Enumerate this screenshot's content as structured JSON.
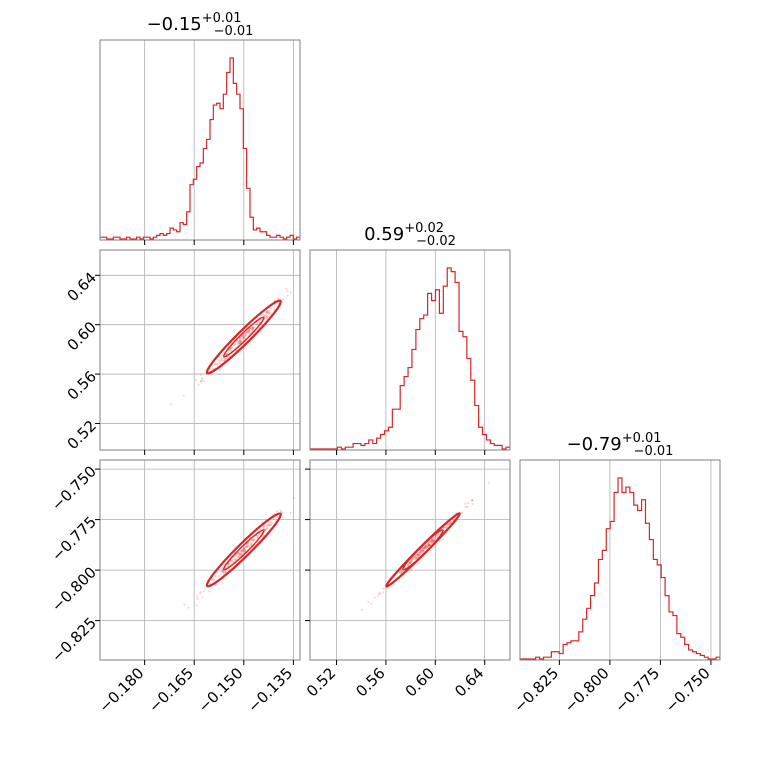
{
  "chart_data": {
    "type": "corner",
    "color": "#d62728",
    "parameters": [
      {
        "title_median": "−0.15",
        "title_plus": "+0.01",
        "title_minus": "−0.01",
        "range": [
          -0.1935,
          -0.133
        ],
        "ticks": [
          -0.18,
          -0.165,
          -0.15,
          -0.135
        ],
        "tick_labels": [
          "−0.180",
          "−0.165",
          "−0.150",
          "−0.135"
        ],
        "hist": [
          0.01,
          0.01,
          0.0,
          0.0,
          0.01,
          0.01,
          0.0,
          0.0,
          0.01,
          0.0,
          0.0,
          0.01,
          0.0,
          0.01,
          0.01,
          0.0,
          0.01,
          0.02,
          0.03,
          0.02,
          0.03,
          0.06,
          0.05,
          0.04,
          0.09,
          0.08,
          0.15,
          0.3,
          0.33,
          0.4,
          0.42,
          0.5,
          0.55,
          0.66,
          0.74,
          0.75,
          0.72,
          0.8,
          0.92,
          1.0,
          0.86,
          0.8,
          0.72,
          0.5,
          0.28,
          0.12,
          0.05,
          0.06,
          0.04,
          0.04,
          0.02,
          0.01,
          0.01,
          0.02,
          0.01,
          0.0,
          0.01,
          0.02,
          0.0,
          0.01
        ]
      },
      {
        "title_median": "0.59",
        "title_plus": "+0.02",
        "title_minus": "−0.02",
        "range": [
          0.4985,
          0.6605
        ],
        "ticks": [
          0.52,
          0.56,
          0.6,
          0.64
        ],
        "tick_labels": [
          "0.52",
          "0.56",
          "0.60",
          "0.64"
        ],
        "hist": [
          0.0,
          0.0,
          0.0,
          0.0,
          0.0,
          0.0,
          0.0,
          0.01,
          0.0,
          0.01,
          0.01,
          0.03,
          0.03,
          0.02,
          0.03,
          0.05,
          0.03,
          0.06,
          0.08,
          0.1,
          0.12,
          0.22,
          0.22,
          0.35,
          0.4,
          0.45,
          0.55,
          0.66,
          0.72,
          0.74,
          0.86,
          0.82,
          0.88,
          0.75,
          0.9,
          1.0,
          0.98,
          0.92,
          0.65,
          0.62,
          0.5,
          0.38,
          0.24,
          0.12,
          0.08,
          0.05,
          0.03,
          0.02,
          0.02,
          0.0,
          0.01
        ]
      },
      {
        "title_median": "−0.79",
        "title_plus": "+0.01",
        "title_minus": "−0.01",
        "range": [
          -0.8445,
          -0.7455
        ],
        "ticks": [
          -0.825,
          -0.8,
          -0.775,
          -0.75
        ],
        "tick_labels": [
          "−0.825",
          "−0.800",
          "−0.775",
          "−0.750"
        ],
        "hist": [
          0.0,
          0.0,
          0.0,
          0.0,
          0.01,
          0.0,
          0.01,
          0.01,
          0.04,
          0.04,
          0.03,
          0.08,
          0.09,
          0.1,
          0.1,
          0.15,
          0.22,
          0.28,
          0.35,
          0.42,
          0.55,
          0.6,
          0.72,
          0.76,
          0.92,
          1.0,
          0.92,
          0.95,
          0.92,
          0.85,
          0.82,
          0.88,
          0.75,
          0.66,
          0.55,
          0.52,
          0.45,
          0.35,
          0.26,
          0.24,
          0.14,
          0.12,
          0.08,
          0.05,
          0.04,
          0.03,
          0.02,
          0.01,
          0.0,
          0.0,
          0.01
        ]
      }
    ],
    "correlation": {
      "a_b": 0.985,
      "a_c": 0.985,
      "b_c": 0.995
    },
    "grid": true
  }
}
